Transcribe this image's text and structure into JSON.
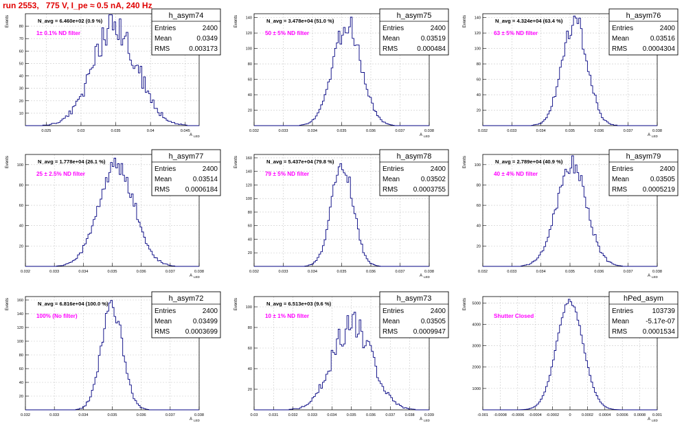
{
  "run_title": "run 2553,   775 V, I_pe ≈ 0.5 nA, 240 Hz",
  "colors": {
    "title": "#e00000",
    "annotation": "#ff00ff",
    "hist": "#000080",
    "grid": "#c8c8c8",
    "axis": "#000000"
  },
  "stats_labels": {
    "entries": "Entries",
    "mean": "Mean",
    "rms": "RMS"
  },
  "ylabel": "Events",
  "xlabel_main": "A",
  "xlabel_sub": "LED",
  "chart_data": [
    {
      "type": "histogram",
      "name": "h_asym74",
      "navg": "N_avg = 6.460e+02 (0.9 %)",
      "annotation": "1± 0.1% ND filter",
      "entries": "2400",
      "mean": "0.0349",
      "rms": "0.003173",
      "xlim": [
        0.022,
        0.047
      ],
      "ylim": [
        0,
        90
      ],
      "xticks": [
        0.025,
        0.03,
        0.035,
        0.04,
        0.045
      ],
      "xtick_labels": [
        "0.025",
        "0.03",
        "0.035",
        "0.04",
        "0.045"
      ],
      "yticks": [
        10,
        20,
        30,
        40,
        50,
        60,
        70,
        80
      ],
      "ytick_labels": [
        "10",
        "20",
        "30",
        "40",
        "50",
        "60",
        "70",
        "80"
      ],
      "grid": true,
      "gauss": {
        "mu": 0.0349,
        "sigma": 0.00317,
        "peak": 80
      }
    },
    {
      "type": "histogram",
      "name": "h_asym75",
      "navg": "N_avg = 3.478e+04 (51.0 %)",
      "annotation": "50 ± 5% ND filter",
      "entries": "2400",
      "mean": "0.03519",
      "rms": "0.000484",
      "xlim": [
        0.032,
        0.038
      ],
      "ylim": [
        0,
        145
      ],
      "xticks": [
        0.032,
        0.033,
        0.034,
        0.035,
        0.036,
        0.037,
        0.038
      ],
      "xtick_labels": [
        "0.032",
        "0.033",
        "0.034",
        "0.035",
        "0.036",
        "0.037",
        "0.038"
      ],
      "yticks": [
        20,
        40,
        60,
        80,
        100,
        120,
        140
      ],
      "ytick_labels": [
        "20",
        "40",
        "60",
        "80",
        "100",
        "120",
        "140"
      ],
      "grid": true,
      "gauss": {
        "mu": 0.03519,
        "sigma": 0.000484,
        "peak": 132
      }
    },
    {
      "type": "histogram",
      "name": "h_asym76",
      "navg": "N_avg = 4.324e+04 (63.4 %)",
      "annotation": "63 ± 5% ND filter",
      "entries": "2400",
      "mean": "0.03516",
      "rms": "0.0004304",
      "xlim": [
        0.032,
        0.038
      ],
      "ylim": [
        0,
        145
      ],
      "xticks": [
        0.032,
        0.033,
        0.034,
        0.035,
        0.036,
        0.037,
        0.038
      ],
      "xtick_labels": [
        "0.032",
        "0.033",
        "0.034",
        "0.035",
        "0.036",
        "0.037",
        "0.038"
      ],
      "yticks": [
        20,
        40,
        60,
        80,
        100,
        120,
        140
      ],
      "ytick_labels": [
        "20",
        "40",
        "60",
        "80",
        "100",
        "120",
        "140"
      ],
      "grid": true,
      "gauss": {
        "mu": 0.03516,
        "sigma": 0.00043,
        "peak": 138
      }
    },
    {
      "type": "histogram",
      "name": "h_asym77",
      "navg": "N_avg = 1.778e+04 (26.1 %)",
      "annotation": "25 ± 2.5% ND filter",
      "entries": "2400",
      "mean": "0.03514",
      "rms": "0.0006184",
      "xlim": [
        0.032,
        0.038
      ],
      "ylim": [
        0,
        110
      ],
      "xticks": [
        0.032,
        0.033,
        0.034,
        0.035,
        0.036,
        0.037,
        0.038
      ],
      "xtick_labels": [
        "0.032",
        "0.033",
        "0.034",
        "0.035",
        "0.036",
        "0.037",
        "0.038"
      ],
      "yticks": [
        20,
        40,
        60,
        80,
        100
      ],
      "ytick_labels": [
        "20",
        "40",
        "60",
        "80",
        "100"
      ],
      "grid": true,
      "gauss": {
        "mu": 0.03514,
        "sigma": 0.000618,
        "peak": 100
      }
    },
    {
      "type": "histogram",
      "name": "h_asym78",
      "navg": "N_avg = 5.437e+04 (79.8 %)",
      "annotation": "79 ± 5% ND filter",
      "entries": "2400",
      "mean": "0.03502",
      "rms": "0.0003755",
      "xlim": [
        0.032,
        0.038
      ],
      "ylim": [
        0,
        165
      ],
      "xticks": [
        0.032,
        0.033,
        0.034,
        0.035,
        0.036,
        0.037,
        0.038
      ],
      "xtick_labels": [
        "0.032",
        "0.033",
        "0.034",
        "0.035",
        "0.036",
        "0.037",
        "0.038"
      ],
      "yticks": [
        20,
        40,
        60,
        80,
        100,
        120,
        140,
        160
      ],
      "ytick_labels": [
        "20",
        "40",
        "60",
        "80",
        "100",
        "120",
        "140",
        "160"
      ],
      "grid": true,
      "gauss": {
        "mu": 0.03502,
        "sigma": 0.000375,
        "peak": 152
      }
    },
    {
      "type": "histogram",
      "name": "h_asym79",
      "navg": "N_avg = 2.789e+04 (40.9 %)",
      "annotation": "40 ± 4% ND filter",
      "entries": "2400",
      "mean": "0.03505",
      "rms": "0.0005219",
      "xlim": [
        0.032,
        0.038
      ],
      "ylim": [
        0,
        110
      ],
      "xticks": [
        0.032,
        0.033,
        0.034,
        0.035,
        0.036,
        0.037,
        0.038
      ],
      "xtick_labels": [
        "0.032",
        "0.033",
        "0.034",
        "0.035",
        "0.036",
        "0.037",
        "0.038"
      ],
      "yticks": [
        20,
        40,
        60,
        80,
        100
      ],
      "ytick_labels": [
        "20",
        "40",
        "60",
        "80",
        "100"
      ],
      "grid": true,
      "gauss": {
        "mu": 0.03505,
        "sigma": 0.000522,
        "peak": 100
      }
    },
    {
      "type": "histogram",
      "name": "h_asym72",
      "navg": "N_avg = 6.816e+04 (100.0 %)",
      "annotation": "100% (No filter)",
      "entries": "2400",
      "mean": "0.03499",
      "rms": "0.0003699",
      "xlim": [
        0.032,
        0.038
      ],
      "ylim": [
        0,
        165
      ],
      "xticks": [
        0.032,
        0.033,
        0.034,
        0.035,
        0.036,
        0.037,
        0.038
      ],
      "xtick_labels": [
        "0.032",
        "0.033",
        "0.034",
        "0.035",
        "0.036",
        "0.037",
        "0.038"
      ],
      "yticks": [
        20,
        40,
        60,
        80,
        100,
        120,
        140,
        160
      ],
      "ytick_labels": [
        "20",
        "40",
        "60",
        "80",
        "100",
        "120",
        "140",
        "160"
      ],
      "grid": true,
      "gauss": {
        "mu": 0.03499,
        "sigma": 0.00037,
        "peak": 152
      }
    },
    {
      "type": "histogram",
      "name": "h_asym73",
      "navg": "N_avg = 6.513e+03 (9.6 %)",
      "annotation": "10 ± 1% ND filter",
      "entries": "2400",
      "mean": "0.03505",
      "rms": "0.0009947",
      "xlim": [
        0.03,
        0.039
      ],
      "ylim": [
        0,
        110
      ],
      "xticks": [
        0.03,
        0.031,
        0.032,
        0.033,
        0.034,
        0.035,
        0.036,
        0.037,
        0.038,
        0.039
      ],
      "xtick_labels": [
        "0.03",
        "0.031",
        "0.032",
        "0.033",
        "0.034",
        "0.035",
        "0.036",
        "0.037",
        "0.038",
        "0.039"
      ],
      "yticks": [
        20,
        40,
        60,
        80,
        100
      ],
      "ytick_labels": [
        "20",
        "40",
        "60",
        "80",
        "100"
      ],
      "grid": true,
      "gauss": {
        "mu": 0.03505,
        "sigma": 0.000995,
        "peak": 85
      }
    },
    {
      "type": "histogram",
      "name": "hPed_asym",
      "navg": "",
      "annotation": "Shutter Closed",
      "entries": "103739",
      "mean": "-5.17e-07",
      "rms": "0.0001534",
      "xlim": [
        -0.001,
        0.001
      ],
      "ylim": [
        0,
        5300
      ],
      "xticks": [
        -0.001,
        -0.0008,
        -0.0006,
        -0.0004,
        -0.0002,
        0,
        0.0002,
        0.0004,
        0.0006,
        0.0008,
        0.001
      ],
      "xtick_labels": [
        "-0.001",
        "-0.0008",
        "-0.0006",
        "-0.0004",
        "-0.0002",
        "0",
        "0.0002",
        "0.0004",
        "0.0006",
        "0.0008",
        "0.001"
      ],
      "yticks": [
        1000,
        2000,
        3000,
        4000,
        5000
      ],
      "ytick_labels": [
        "1000",
        "2000",
        "3000",
        "4000",
        "5000"
      ],
      "grid": true,
      "gauss": {
        "mu": 0,
        "sigma": 0.000153,
        "peak": 5050
      }
    }
  ]
}
